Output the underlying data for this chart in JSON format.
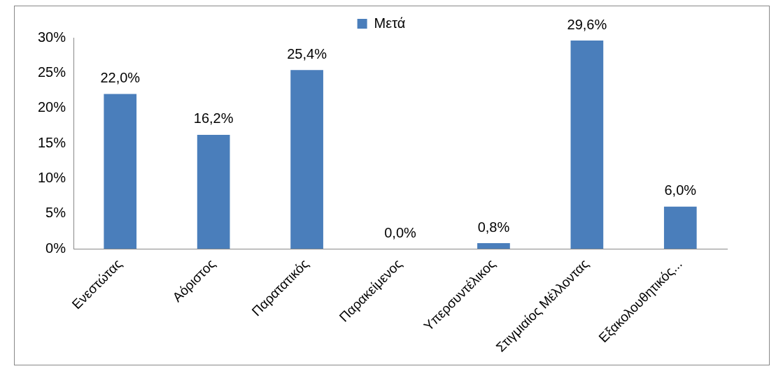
{
  "chart_data": {
    "type": "bar",
    "categories": [
      "Ενεστώτας",
      "Αόριστος",
      "Παρατατικός",
      "Παρακείμενος",
      "Υπερσυντέλικος",
      "Στιγμιαίος Μέλλοντας",
      "Εξακολουθητικός..."
    ],
    "series": [
      {
        "name": "Μετά",
        "color": "#4a7ebb",
        "values": [
          22.0,
          16.2,
          25.4,
          0.0,
          0.8,
          29.6,
          6.0
        ],
        "value_labels": [
          "22,0%",
          "16,2%",
          "25,4%",
          "0,0%",
          "0,8%",
          "29,6%",
          "6,0%"
        ]
      }
    ],
    "ylim": [
      0,
      30
    ],
    "yticks": [
      {
        "value": 0,
        "label": "0%"
      },
      {
        "value": 5,
        "label": "5%"
      },
      {
        "value": 10,
        "label": "10%"
      },
      {
        "value": 15,
        "label": "15%"
      },
      {
        "value": 20,
        "label": "20%"
      },
      {
        "value": 25,
        "label": "25%"
      },
      {
        "value": 30,
        "label": "30%"
      }
    ],
    "grid": false,
    "legend": "top"
  }
}
